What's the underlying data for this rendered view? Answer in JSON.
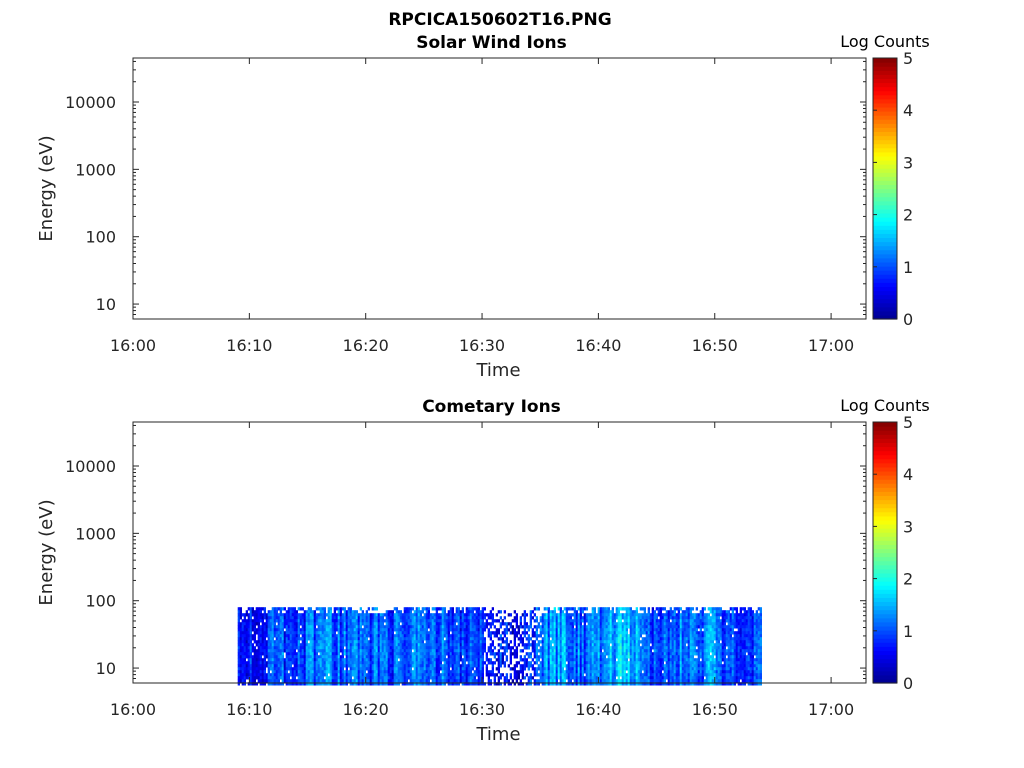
{
  "figure_title": "RPCICA150602T16.PNG",
  "colormap": [
    "#00008f",
    "#0000ff",
    "#0080ff",
    "#00ffff",
    "#80ff80",
    "#ffff00",
    "#ff8000",
    "#ff0000",
    "#800000"
  ],
  "chart_data": [
    {
      "type": "heatmap",
      "title": "Solar Wind Ions",
      "xlabel": "Time",
      "ylabel": "Energy (eV)",
      "x_ticks": [
        "16:00",
        "16:10",
        "16:20",
        "16:30",
        "16:40",
        "16:50",
        "17:00"
      ],
      "x_range": [
        "16:00",
        "17:03"
      ],
      "y_scale": "log",
      "y_ticks": [
        "10",
        "100",
        "1000",
        "10000"
      ],
      "y_range": [
        6,
        45000
      ],
      "colorbar": {
        "label": "Log Counts",
        "ticks": [
          "0",
          "1",
          "2",
          "3",
          "4",
          "5"
        ],
        "range": [
          0,
          5
        ]
      },
      "data": []
    },
    {
      "type": "heatmap",
      "title": "Cometary Ions",
      "xlabel": "Time",
      "ylabel": "Energy (eV)",
      "x_ticks": [
        "16:00",
        "16:10",
        "16:20",
        "16:30",
        "16:40",
        "16:50",
        "17:00"
      ],
      "x_range": [
        "16:00",
        "17:03"
      ],
      "y_scale": "log",
      "y_ticks": [
        "10",
        "100",
        "1000",
        "10000"
      ],
      "y_range": [
        6,
        45000
      ],
      "colorbar": {
        "label": "Log Counts",
        "ticks": [
          "0",
          "1",
          "2",
          "3",
          "4",
          "5"
        ],
        "range": [
          0,
          5
        ]
      },
      "data": {
        "time_start": "16:09",
        "time_end": "16:54",
        "energy_min_eV": 6,
        "energy_max_eV": 80,
        "log_counts_range": [
          0,
          1.8
        ],
        "time_profile": [
          {
            "t": "16:09",
            "log_counts": 0.6
          },
          {
            "t": "16:14",
            "log_counts": 0.9
          },
          {
            "t": "16:18",
            "log_counts": 1.0
          },
          {
            "t": "16:22",
            "log_counts": 0.9
          },
          {
            "t": "16:26",
            "log_counts": 1.0
          },
          {
            "t": "16:30",
            "log_counts": 0.7
          },
          {
            "t": "16:33",
            "log_counts": 0.4
          },
          {
            "t": "16:36",
            "log_counts": 1.3
          },
          {
            "t": "16:39",
            "log_counts": 1.0
          },
          {
            "t": "16:42",
            "log_counts": 1.5
          },
          {
            "t": "16:45",
            "log_counts": 0.9
          },
          {
            "t": "16:48",
            "log_counts": 1.2
          },
          {
            "t": "16:51",
            "log_counts": 1.0
          },
          {
            "t": "16:54",
            "log_counts": 0.8
          }
        ]
      }
    }
  ]
}
